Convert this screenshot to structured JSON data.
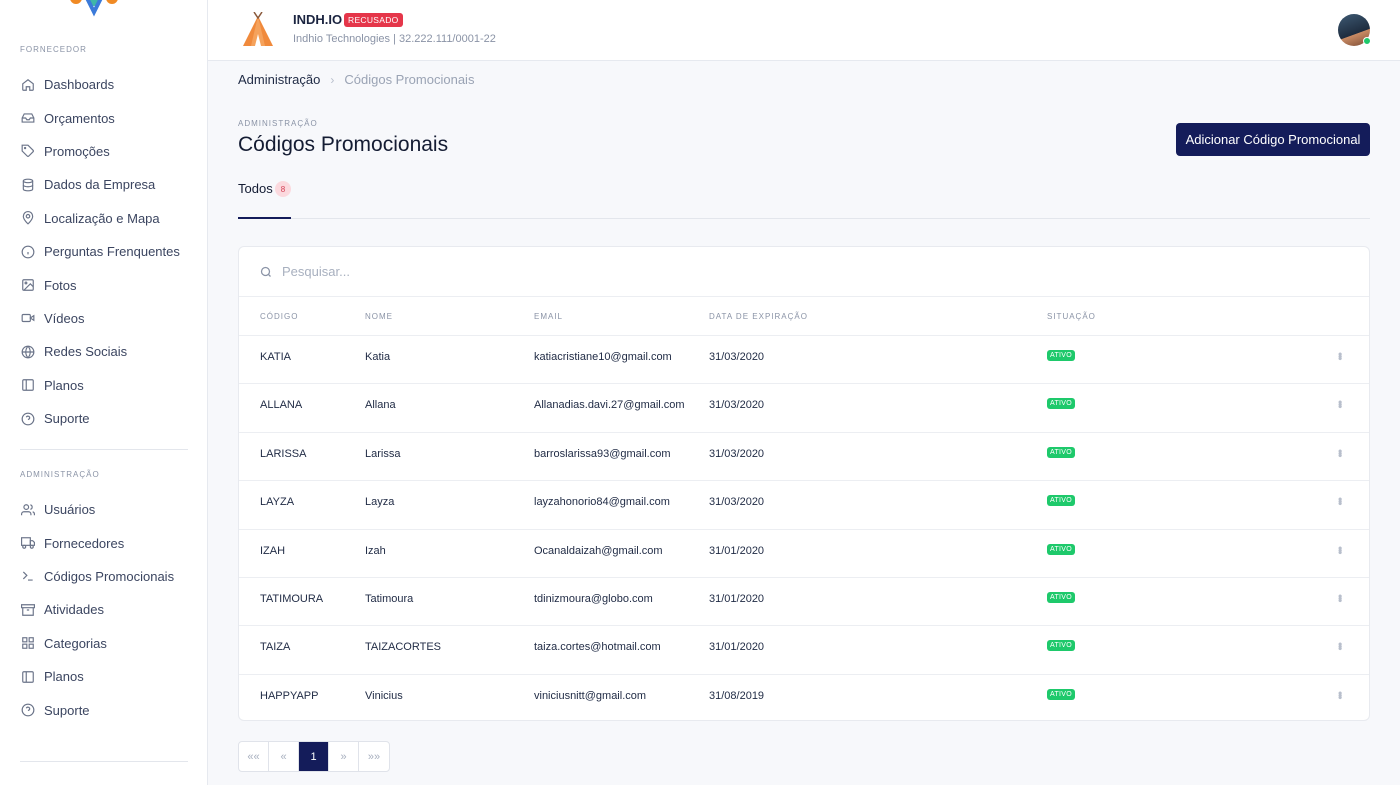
{
  "sidebar": {
    "section_supplier": "FORNECEDOR",
    "supplier_items": [
      {
        "label": "Dashboards",
        "icon": "home-icon"
      },
      {
        "label": "Orçamentos",
        "icon": "inbox-icon"
      },
      {
        "label": "Promoções",
        "icon": "tag-icon"
      },
      {
        "label": "Dados da Empresa",
        "icon": "database-icon"
      },
      {
        "label": "Localização e Mapa",
        "icon": "map-pin-icon"
      },
      {
        "label": "Perguntas Frenquentes",
        "icon": "info-icon"
      },
      {
        "label": "Fotos",
        "icon": "image-icon"
      },
      {
        "label": "Vídeos",
        "icon": "video-icon"
      },
      {
        "label": "Redes Sociais",
        "icon": "globe-icon"
      },
      {
        "label": "Planos",
        "icon": "sidebar-icon"
      },
      {
        "label": "Suporte",
        "icon": "help-circle-icon"
      }
    ],
    "section_admin": "ADMINISTRAÇÃO",
    "admin_items": [
      {
        "label": "Usuários",
        "icon": "users-icon"
      },
      {
        "label": "Fornecedores",
        "icon": "truck-icon"
      },
      {
        "label": "Códigos Promocionais",
        "icon": "terminal-icon"
      },
      {
        "label": "Atividades",
        "icon": "archive-icon"
      },
      {
        "label": "Categorias",
        "icon": "grid-icon"
      },
      {
        "label": "Planos",
        "icon": "sidebar-icon"
      },
      {
        "label": "Suporte",
        "icon": "help-circle-icon"
      }
    ]
  },
  "header": {
    "company_name": "INDH.IO",
    "status_badge": "RECUSADO",
    "company_sub": "Indhio Technologies | 32.222.111/0001-22"
  },
  "breadcrumb": {
    "parent": "Administração",
    "current": "Códigos Promocionais"
  },
  "page": {
    "overline": "ADMINISTRAÇÃO",
    "title": "Códigos Promocionais",
    "add_button": "Adicionar Código Promocional"
  },
  "tabs": [
    {
      "label": "Todos",
      "count": "8"
    }
  ],
  "search": {
    "placeholder": "Pesquisar..."
  },
  "table": {
    "columns": [
      "CÓDIGO",
      "NOME",
      "EMAIL",
      "DATA DE EXPIRAÇÃO",
      "SITUAÇÃO"
    ],
    "rows": [
      {
        "code": "KATIA",
        "name": "Katia",
        "email": "katiacristiane10@gmail.com",
        "expires": "31/03/2020",
        "status": "ATIVO"
      },
      {
        "code": "ALLANA",
        "name": "Allana",
        "email": "Allanadias.davi.27@gmail.com",
        "expires": "31/03/2020",
        "status": "ATIVO"
      },
      {
        "code": "LARISSA",
        "name": "Larissa",
        "email": "barroslarissa93@gmail.com",
        "expires": "31/03/2020",
        "status": "ATIVO"
      },
      {
        "code": "LAYZA",
        "name": "Layza",
        "email": "layzahonorio84@gmail.com",
        "expires": "31/03/2020",
        "status": "ATIVO"
      },
      {
        "code": "IZAH",
        "name": "Izah",
        "email": "Ocanaldaizah@gmail.com",
        "expires": "31/01/2020",
        "status": "ATIVO"
      },
      {
        "code": "TATIMOURA",
        "name": "Tatimoura",
        "email": "tdinizmoura@globo.com",
        "expires": "31/01/2020",
        "status": "ATIVO"
      },
      {
        "code": "TAIZA",
        "name": "TAIZACORTES",
        "email": "taiza.cortes@hotmail.com",
        "expires": "31/01/2020",
        "status": "ATIVO"
      },
      {
        "code": "HAPPYAPP",
        "name": "Vinicius",
        "email": "viniciusnitt@gmail.com",
        "expires": "31/08/2019",
        "status": "ATIVO"
      }
    ]
  },
  "pagination": {
    "first": "««",
    "prev": "«",
    "current": "1",
    "next": "»",
    "last": "»»"
  },
  "colors": {
    "primary": "#141c5a",
    "danger": "#e5364a",
    "success": "#1ec96b"
  }
}
